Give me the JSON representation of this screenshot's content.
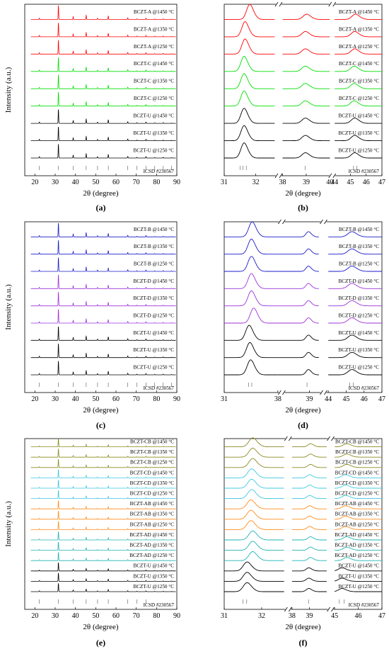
{
  "colors": {
    "A": "#ff0000",
    "B": "#1a1acc",
    "C": "#00e000",
    "D": "#9c32dc",
    "U": "#000000",
    "CB": "#8a8a22",
    "CD": "#3cc8e0",
    "AB": "#ff8c1a",
    "AD": "#20b4b4"
  },
  "chart_data": [
    {
      "id": "a",
      "type": "line",
      "panel_label": "(a)",
      "xlabel": "2θ (degree)",
      "ylabel": "Intensity (a.u.)",
      "xrange": [
        15,
        90
      ],
      "xticks": [
        20,
        30,
        40,
        50,
        60,
        70,
        80,
        90
      ],
      "reference": "ICSD #230567",
      "ref_positions": [
        22.2,
        31.6,
        38.9,
        45.3,
        50.9,
        56.2,
        65.8,
        70.3,
        74.8,
        79.1,
        83.3,
        87.4
      ],
      "series": [
        {
          "name": "BCZT-A @1450 °C",
          "group": "A"
        },
        {
          "name": "BCZT-A @1350 °C",
          "group": "A"
        },
        {
          "name": "BCZT-A @1250 °C",
          "group": "A"
        },
        {
          "name": "BCZT-C @1450 °C",
          "group": "C"
        },
        {
          "name": "BCZT-C @1350 °C",
          "group": "C"
        },
        {
          "name": "BCZT-C @1250 °C",
          "group": "C"
        },
        {
          "name": "BCZT-U @1450 °C",
          "group": "U"
        },
        {
          "name": "BCZT-U @1350 °C",
          "group": "U"
        },
        {
          "name": "BCZT-U @1250 °C",
          "group": "U"
        }
      ]
    },
    {
      "id": "b",
      "type": "line",
      "panel_label": "(b)",
      "xlabel": "2θ (degree)",
      "broken_axis": true,
      "segments": [
        [
          31,
          32.6
        ],
        [
          38,
          40
        ],
        [
          44,
          47
        ]
      ],
      "xticks": [
        31,
        32,
        38,
        39,
        40,
        44,
        45,
        46,
        47
      ],
      "reference": "ICSD #230567",
      "ref_positions": [
        31.5,
        31.6,
        31.7,
        38.95,
        45.2,
        45.4
      ],
      "series": [
        {
          "name": "BCZT-A @1450 °C",
          "group": "A",
          "peaks": [
            31.8,
            39.0,
            45.3
          ]
        },
        {
          "name": "BCZT-A @1350 °C",
          "group": "A",
          "peaks": [
            31.65,
            38.95,
            45.25
          ]
        },
        {
          "name": "BCZT-A @1250 °C",
          "group": "A",
          "peaks": [
            31.65,
            38.95,
            45.25
          ]
        },
        {
          "name": "BCZT-C @1450 °C",
          "group": "C",
          "peaks": [
            31.62,
            38.95,
            45.22
          ]
        },
        {
          "name": "BCZT-C @1350 °C",
          "group": "C",
          "peaks": [
            31.62,
            38.95,
            45.22
          ]
        },
        {
          "name": "BCZT-C @1250 °C",
          "group": "C",
          "peaks": [
            31.62,
            38.95,
            45.22
          ]
        },
        {
          "name": "BCZT-U @1450 °C",
          "group": "U",
          "peaks": [
            31.62,
            38.95,
            45.25
          ]
        },
        {
          "name": "BCZT-U @1350 °C",
          "group": "U",
          "peaks": [
            31.62,
            38.95,
            45.25
          ]
        },
        {
          "name": "BCZT-U @1250 °C",
          "group": "U",
          "peaks": [
            31.62,
            38.95,
            45.25
          ]
        }
      ]
    },
    {
      "id": "c",
      "type": "line",
      "panel_label": "(c)",
      "xlabel": "2θ (degree)",
      "ylabel": "Intensity (a.u.)",
      "xrange": [
        15,
        90
      ],
      "xticks": [
        20,
        30,
        40,
        50,
        60,
        70,
        80,
        90
      ],
      "reference": "ICSD #230567",
      "ref_positions": [
        22.2,
        31.6,
        38.9,
        45.3,
        50.9,
        56.2,
        65.8,
        70.3,
        74.8,
        79.1,
        83.3,
        87.4
      ],
      "series": [
        {
          "name": "BCZT-B @1450 °C",
          "group": "B"
        },
        {
          "name": "BCZT-B @1350 °C",
          "group": "B"
        },
        {
          "name": "BCZT-B @1250 °C",
          "group": "B"
        },
        {
          "name": "BCZT-D @1450 °C",
          "group": "D"
        },
        {
          "name": "BCZT-D @1350 °C",
          "group": "D"
        },
        {
          "name": "BCZT-D @1250 °C",
          "group": "D"
        },
        {
          "name": "BCZT-U @1450 °C",
          "group": "U"
        },
        {
          "name": "BCZT-U @1350 °C",
          "group": "U"
        },
        {
          "name": "BCZT-U @1250 °C",
          "group": "U"
        }
      ]
    },
    {
      "id": "d",
      "type": "line",
      "panel_label": "(d)",
      "xlabel": "2θ (degree)",
      "broken_axis": true,
      "segments": [
        [
          31,
          38
        ],
        [
          38,
          39.4
        ],
        [
          44,
          47
        ]
      ],
      "xticks": [
        31,
        38,
        39,
        44,
        45,
        46,
        47
      ],
      "reference": "ICSD #230567",
      "ref_positions": [
        34.2,
        34.6,
        38.9,
        45.2,
        45.4
      ],
      "series": [
        {
          "name": "BCZT-B @1450 °C",
          "group": "B",
          "peaks": [
            34.6,
            38.95,
            45.3
          ]
        },
        {
          "name": "BCZT-B @1350 °C",
          "group": "B",
          "peaks": [
            34.5,
            38.95,
            45.3
          ]
        },
        {
          "name": "BCZT-B @1250 °C",
          "group": "B",
          "peaks": [
            34.5,
            38.95,
            45.3
          ]
        },
        {
          "name": "BCZT-D @1450 °C",
          "group": "D",
          "peaks": [
            34.5,
            38.95,
            45.3
          ]
        },
        {
          "name": "BCZT-D @1350 °C",
          "group": "D",
          "peaks": [
            34.5,
            38.95,
            45.3
          ]
        },
        {
          "name": "BCZT-D @1250 °C",
          "group": "D",
          "peaks": [
            34.8,
            38.95,
            45.3
          ]
        },
        {
          "name": "BCZT-U @1450 °C",
          "group": "U",
          "peaks": [
            34.2,
            38.95,
            45.3
          ]
        },
        {
          "name": "BCZT-U @1350 °C",
          "group": "U",
          "peaks": [
            34.3,
            38.95,
            45.3
          ]
        },
        {
          "name": "BCZT-U @1250 °C",
          "group": "U",
          "peaks": [
            34.4,
            38.95,
            45.3
          ]
        }
      ]
    },
    {
      "id": "e",
      "type": "line",
      "panel_label": "(e)",
      "xlabel": "2θ (degree)",
      "ylabel": "Intensity (a.u.)",
      "xrange": [
        15,
        90
      ],
      "xticks": [
        20,
        30,
        40,
        50,
        60,
        70,
        80,
        90
      ],
      "reference": "ICSD #230567",
      "ref_positions": [
        22.2,
        31.6,
        38.9,
        45.3,
        50.9,
        56.2,
        65.8,
        70.3,
        74.8
      ],
      "series": [
        {
          "name": "BCZT-CB @1450 °C",
          "group": "CB"
        },
        {
          "name": "BCZT-CB @1350 °C",
          "group": "CB"
        },
        {
          "name": "BCZT-CB @1250 °C",
          "group": "CB"
        },
        {
          "name": "BCZT-CD @1450 °C",
          "group": "CD"
        },
        {
          "name": "BCZT-CD @1350 °C",
          "group": "CD"
        },
        {
          "name": "BCZT-CD @1250 °C",
          "group": "CD"
        },
        {
          "name": "BCZT-AB @1450 °C",
          "group": "AB"
        },
        {
          "name": "BCZT-AB @1350 °C",
          "group": "AB"
        },
        {
          "name": "BCZT-AB @1250 °C",
          "group": "AB"
        },
        {
          "name": "BCZT-AD @1450 °C",
          "group": "AD"
        },
        {
          "name": "BCZT-AD @1350 °C",
          "group": "AD"
        },
        {
          "name": "BCZT-AD @1250 °C",
          "group": "AD"
        },
        {
          "name": "BCZT-U @1450 °C",
          "group": "U"
        },
        {
          "name": "BCZT-U @1350 °C",
          "group": "U"
        },
        {
          "name": "BCZT-U @1250 °C",
          "group": "U"
        }
      ]
    },
    {
      "id": "f",
      "type": "line",
      "panel_label": "(f)",
      "xlabel": "2θ (degree)",
      "broken_axis": true,
      "segments": [
        [
          31,
          32.6
        ],
        [
          38,
          40
        ],
        [
          45,
          47
        ]
      ],
      "xticks": [
        31,
        32,
        38,
        39,
        45,
        46,
        47
      ],
      "reference": "ICSD #230567",
      "ref_positions": [
        31.5,
        31.6,
        38.95,
        45.2,
        45.4
      ],
      "series": [
        {
          "name": "BCZT-CB @1450 °C",
          "group": "CB",
          "peaks": [
            31.75,
            39.05,
            45.5
          ]
        },
        {
          "name": "BCZT-CB @1350 °C",
          "group": "CB",
          "peaks": [
            31.75,
            39.05,
            45.5
          ]
        },
        {
          "name": "BCZT-CB @1250 °C",
          "group": "CB",
          "peaks": [
            31.75,
            39.05,
            45.5
          ]
        },
        {
          "name": "BCZT-CD @1450 °C",
          "group": "CD",
          "peaks": [
            31.72,
            39.0,
            45.45
          ]
        },
        {
          "name": "BCZT-CD @1350 °C",
          "group": "CD",
          "peaks": [
            31.72,
            39.0,
            45.45
          ]
        },
        {
          "name": "BCZT-CD @1250 °C",
          "group": "CD",
          "peaks": [
            31.72,
            39.0,
            45.45
          ]
        },
        {
          "name": "BCZT-AB @1450 °C",
          "group": "AB",
          "peaks": [
            31.7,
            39.0,
            45.45
          ]
        },
        {
          "name": "BCZT-AB @1350 °C",
          "group": "AB",
          "peaks": [
            31.7,
            39.0,
            45.45
          ]
        },
        {
          "name": "BCZT-AB @1250 °C",
          "group": "AB",
          "peaks": [
            31.7,
            39.0,
            45.45
          ]
        },
        {
          "name": "BCZT-AD @1450 °C",
          "group": "AD",
          "peaks": [
            31.75,
            39.05,
            45.5
          ]
        },
        {
          "name": "BCZT-AD @1350 °C",
          "group": "AD",
          "peaks": [
            31.75,
            39.05,
            45.5
          ]
        },
        {
          "name": "BCZT-AD @1250 °C",
          "group": "AD",
          "peaks": [
            31.75,
            39.05,
            45.5
          ]
        },
        {
          "name": "BCZT-U @1450 °C",
          "group": "U",
          "peaks": [
            31.6,
            38.95,
            45.3
          ]
        },
        {
          "name": "BCZT-U @1350 °C",
          "group": "U",
          "peaks": [
            31.6,
            38.95,
            45.3
          ]
        },
        {
          "name": "BCZT-U @1250 °C",
          "group": "U",
          "peaks": [
            31.6,
            38.95,
            45.3
          ]
        }
      ]
    }
  ]
}
